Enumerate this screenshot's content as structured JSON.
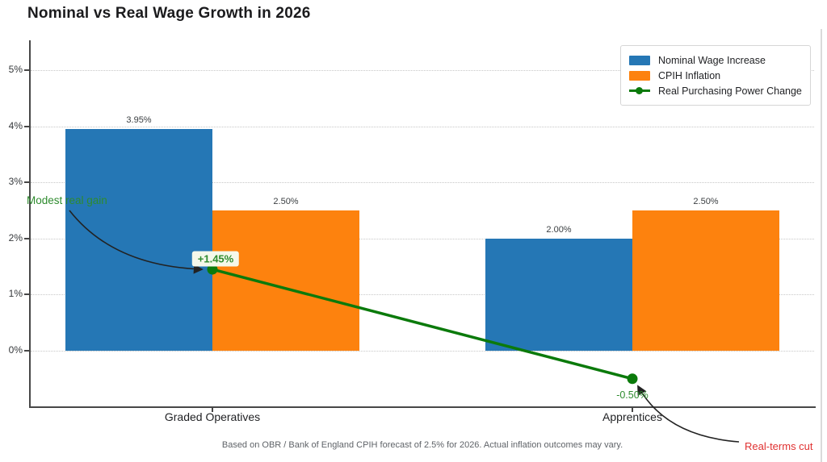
{
  "title": "Nominal vs Real Wage Growth in 2026",
  "footnote": "Based on OBR / Bank of England CPIH forecast of 2.5% for 2026. Actual inflation outcomes may vary.",
  "legend": {
    "items": [
      {
        "label": "Nominal Wage Increase",
        "color": "#2577b5",
        "marker": "swatch"
      },
      {
        "label": "CPIH Inflation",
        "color": "#fd820e",
        "marker": "swatch"
      },
      {
        "label": "Real Purchasing Power Change",
        "color": "#0b7a0b",
        "marker": "line-dot"
      }
    ]
  },
  "chart_data": {
    "type": "bar",
    "title": "Nominal vs Real Wage Growth in 2026",
    "categories": [
      "Graded Operatives",
      "Apprentices"
    ],
    "series": [
      {
        "name": "Nominal Wage Increase",
        "type": "bar",
        "color": "#2577b5",
        "values": [
          3.95,
          2.0
        ],
        "value_labels": [
          "3.95%",
          "2.00%"
        ]
      },
      {
        "name": "CPIH Inflation",
        "type": "bar",
        "color": "#fd820e",
        "values": [
          2.5,
          2.5
        ],
        "value_labels": [
          "2.50%",
          "2.50%"
        ]
      },
      {
        "name": "Real Purchasing Power Change",
        "type": "line",
        "color": "#0b7a0b",
        "values": [
          1.45,
          -0.5
        ],
        "value_labels": [
          "+1.45%",
          "-0.50%"
        ]
      }
    ],
    "xlabel": "",
    "ylabel": "",
    "yticks": {
      "labels": [
        "5%",
        "4%",
        "3%",
        "2%",
        "1%",
        "0%"
      ],
      "values": [
        5,
        4,
        3,
        2,
        1,
        0
      ]
    },
    "ylim": [
      -1,
      5.5
    ],
    "grid": "horizontal dotted",
    "legend_position": "upper right"
  },
  "annotations": {
    "modest_real_gain": {
      "text": "Modest real gain",
      "color": "#2e8b2e"
    },
    "point_gain": {
      "text": "+1.45%",
      "color": "#2e8b2e",
      "bg": "#f5f8ea"
    },
    "point_cut": {
      "text": "-0.50%",
      "color": "#2e8b2e"
    },
    "real_terms_cut": {
      "text": "Real-terms cut",
      "color": "#e03131"
    }
  }
}
